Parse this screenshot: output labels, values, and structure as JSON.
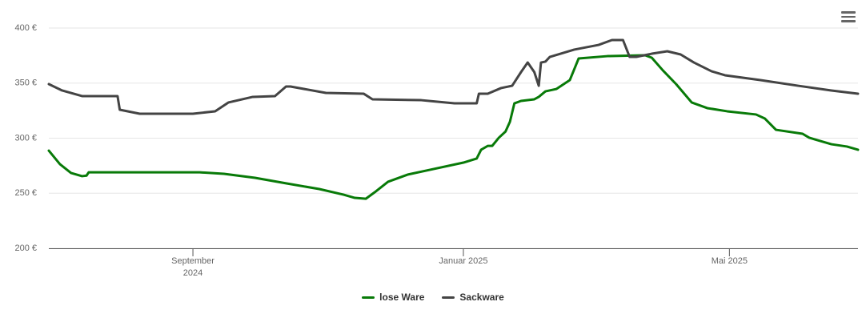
{
  "chart_data": {
    "type": "line",
    "xlim": [
      "2024-06-28",
      "2025-06-28"
    ],
    "xticks": [
      {
        "value": "2024-09-01",
        "label": "September 2024"
      },
      {
        "value": "2025-01-01",
        "label": "Januar 2025"
      },
      {
        "value": "2025-05-01",
        "label": "Mai 2025"
      }
    ],
    "ylim": [
      200,
      400
    ],
    "yticks": [
      {
        "value": 200,
        "label": "200 €"
      },
      {
        "value": 250,
        "label": "250 €"
      },
      {
        "value": 300,
        "label": "300 €"
      },
      {
        "value": 350,
        "label": "350 €"
      },
      {
        "value": 400,
        "label": "400 €"
      }
    ],
    "grid": true,
    "series": [
      {
        "name": "lose Ware",
        "color": "#087a08",
        "x": [
          "2024-06-28",
          "2024-07-03",
          "2024-07-08",
          "2024-07-13",
          "2024-07-15",
          "2024-07-16",
          "2024-09-04",
          "2024-09-15",
          "2024-09-29",
          "2024-10-13",
          "2024-10-28",
          "2024-11-08",
          "2024-11-13",
          "2024-11-18",
          "2024-11-22",
          "2024-11-28",
          "2024-12-07",
          "2024-12-17",
          "2025-01-01",
          "2025-01-07",
          "2025-01-09",
          "2025-01-12",
          "2025-01-14",
          "2025-01-17",
          "2025-01-20",
          "2025-01-22",
          "2025-01-24",
          "2025-01-27",
          "2025-02-02",
          "2025-02-04",
          "2025-02-07",
          "2025-02-12",
          "2025-02-18",
          "2025-02-22",
          "2025-03-07",
          "2025-03-24",
          "2025-03-27",
          "2025-04-01",
          "2025-04-07",
          "2025-04-14",
          "2025-04-21",
          "2025-04-30",
          "2025-05-13",
          "2025-05-17",
          "2025-05-22",
          "2025-06-03",
          "2025-06-06",
          "2025-06-16",
          "2025-06-23",
          "2025-06-28"
        ],
        "values": [
          288.7,
          276.4,
          268.4,
          265.5,
          266,
          269,
          269,
          267.6,
          264,
          259,
          253.8,
          248.7,
          245.8,
          245,
          250.9,
          260.4,
          267,
          271.3,
          277.8,
          281.5,
          289.5,
          293,
          293,
          300.4,
          306,
          314.9,
          331.6,
          333.8,
          335.3,
          337.5,
          342.5,
          344.7,
          352.7,
          372.4,
          374.5,
          375.3,
          373,
          361.5,
          349,
          332.4,
          327.3,
          324.4,
          321.5,
          317.8,
          307.6,
          304,
          300.4,
          294.5,
          292.4,
          289.5
        ]
      },
      {
        "name": "Sackware",
        "color": "#444444",
        "x": [
          "2024-06-28",
          "2024-07-04",
          "2024-07-13",
          "2024-07-29",
          "2024-07-30",
          "2024-08-08",
          "2024-09-01",
          "2024-09-11",
          "2024-09-17",
          "2024-09-28",
          "2024-10-08",
          "2024-10-13",
          "2024-10-15",
          "2024-10-17",
          "2024-10-31",
          "2024-11-17",
          "2024-11-21",
          "2024-12-13",
          "2024-12-28",
          "2025-01-07",
          "2025-01-08",
          "2025-01-12",
          "2025-01-18",
          "2025-01-23",
          "2025-01-27",
          "2025-01-30",
          "2025-02-02",
          "2025-02-04",
          "2025-02-05",
          "2025-02-07",
          "2025-02-09",
          "2025-02-20",
          "2025-03-03",
          "2025-03-09",
          "2025-03-14",
          "2025-03-17",
          "2025-03-20",
          "2025-03-27",
          "2025-04-03",
          "2025-04-09",
          "2025-04-15",
          "2025-04-23",
          "2025-04-29",
          "2025-05-15",
          "2025-06-01",
          "2025-06-16",
          "2025-06-28"
        ],
        "values": [
          349.1,
          343.3,
          338.2,
          338.2,
          325.8,
          322.2,
          322.2,
          324.4,
          332.4,
          337.5,
          338.2,
          346.9,
          346.9,
          346.2,
          341.1,
          340.4,
          335.3,
          334.5,
          331.6,
          331.6,
          340.4,
          340.4,
          345.5,
          347.6,
          360,
          368.7,
          360,
          347.6,
          368.7,
          369.5,
          373.8,
          380.4,
          384.7,
          389.1,
          389.1,
          373.8,
          373.8,
          376.7,
          378.9,
          376,
          368.7,
          360.7,
          357.1,
          352.7,
          347.6,
          343.3,
          340.4
        ]
      }
    ]
  }
}
